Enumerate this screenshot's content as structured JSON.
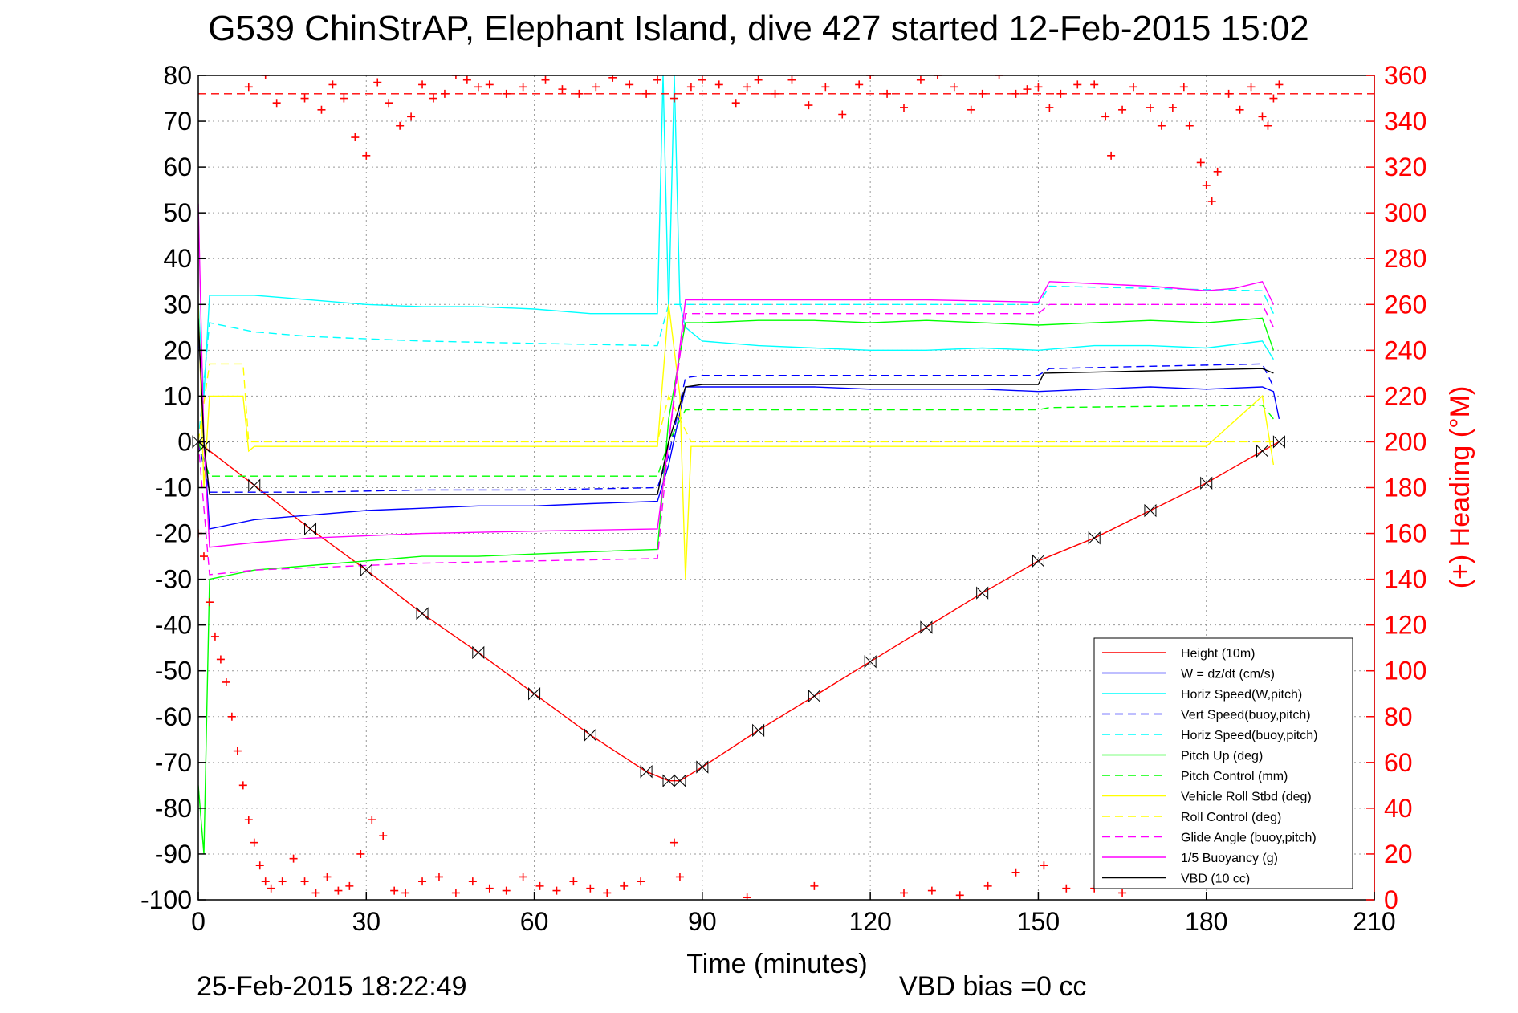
{
  "chart_data": {
    "type": "line",
    "title": "G539 ChinStrAP, Elephant Island, dive 427 started 12-Feb-2015 15:02",
    "xlabel": "Time (minutes)",
    "ylabel_right": "(+) Heading (°M)",
    "footer_left": "25-Feb-2015 18:22:49",
    "footer_right": "VBD bias =0 cc",
    "xlim": [
      0,
      210
    ],
    "ylim": [
      -100,
      80
    ],
    "ylim_right": [
      0,
      360
    ],
    "x_ticks": [
      0,
      30,
      60,
      90,
      120,
      150,
      180,
      210
    ],
    "y_ticks": [
      80,
      70,
      60,
      50,
      40,
      30,
      20,
      10,
      0,
      -10,
      -20,
      -30,
      -40,
      -50,
      -60,
      -70,
      -80,
      -90,
      -100
    ],
    "y_ticks_right": [
      360,
      340,
      320,
      300,
      280,
      260,
      240,
      220,
      200,
      180,
      160,
      140,
      120,
      100,
      80,
      60,
      40,
      20,
      0
    ],
    "grid": true,
    "legend_position": "lower-right",
    "series": [
      {
        "name": "Height (10m)",
        "color": "#ff0000",
        "style": "solid",
        "x": [
          0,
          1,
          10,
          20,
          30,
          40,
          50,
          60,
          70,
          80,
          84,
          86,
          90,
          100,
          110,
          120,
          130,
          140,
          150,
          160,
          170,
          180,
          190,
          193
        ],
        "y": [
          0,
          -1,
          -9.5,
          -19,
          -28,
          -37.5,
          -46,
          -55,
          -64,
          -72,
          -74,
          -74,
          -71,
          -63,
          -55.5,
          -48,
          -40.5,
          -33,
          -26,
          -21,
          -15,
          -9,
          -2,
          0
        ]
      },
      {
        "name": "W = dz/dt (cm/s)",
        "color": "#0000ff",
        "style": "solid",
        "x": [
          0,
          1,
          2,
          10,
          20,
          30,
          40,
          50,
          60,
          70,
          82,
          84,
          87,
          90,
          100,
          110,
          120,
          130,
          140,
          150,
          160,
          170,
          180,
          190,
          192,
          193
        ],
        "y": [
          25,
          0,
          -19,
          -17,
          -16,
          -15,
          -14.5,
          -14,
          -14,
          -13.5,
          -13,
          -5,
          12,
          12,
          12,
          12,
          11.5,
          11.5,
          11.5,
          11,
          11.5,
          12,
          11.5,
          12,
          11,
          5
        ]
      },
      {
        "name": "Horiz Speed(W,pitch)",
        "color": "#00ffff",
        "style": "solid",
        "x": [
          0,
          1,
          2,
          10,
          20,
          30,
          40,
          50,
          60,
          70,
          82,
          83,
          84,
          85,
          86,
          87,
          90,
          100,
          110,
          120,
          130,
          140,
          150,
          160,
          170,
          180,
          190,
          192
        ],
        "y": [
          30,
          10,
          32,
          32,
          31,
          30,
          29.5,
          29.5,
          29,
          28,
          28,
          80,
          28,
          80,
          30,
          25,
          22,
          21,
          20.5,
          20,
          20,
          20.5,
          20,
          21,
          21,
          20.5,
          22,
          18
        ]
      },
      {
        "name": "Vert Speed(buoy,pitch)",
        "color": "#0000ff",
        "style": "dashed",
        "x": [
          0,
          2,
          10,
          20,
          40,
          60,
          82,
          84,
          87,
          90,
          110,
          130,
          150,
          152,
          170,
          190,
          192
        ],
        "y": [
          0,
          -11,
          -11,
          -11,
          -10.5,
          -10.5,
          -10,
          -3,
          14,
          14.5,
          14.5,
          14.5,
          14.5,
          16,
          16.5,
          17,
          12
        ]
      },
      {
        "name": "Horiz Speed(buoy,pitch)",
        "color": "#00ffff",
        "style": "dashed",
        "x": [
          0,
          2,
          10,
          20,
          40,
          60,
          82,
          84,
          87,
          90,
          110,
          130,
          150,
          152,
          170,
          190,
          192
        ],
        "y": [
          0,
          26,
          24,
          23,
          22,
          21.5,
          21,
          30,
          30,
          30,
          30,
          30,
          30,
          34,
          33.5,
          33,
          28
        ]
      },
      {
        "name": "Pitch Up (deg)",
        "color": "#00ff00",
        "style": "solid",
        "x": [
          0,
          1,
          2,
          10,
          20,
          30,
          40,
          50,
          60,
          70,
          82,
          84,
          87,
          90,
          100,
          110,
          120,
          130,
          140,
          150,
          160,
          170,
          180,
          190,
          192
        ],
        "y": [
          -75,
          -90,
          -30,
          -28,
          -27,
          -26,
          -25,
          -25,
          -24.5,
          -24,
          -23.5,
          5,
          26,
          26,
          26.5,
          26.5,
          26,
          26.5,
          26,
          25.5,
          26,
          26.5,
          26,
          27,
          20
        ]
      },
      {
        "name": "Pitch Control (mm)",
        "color": "#00ff00",
        "style": "dashed",
        "x": [
          0,
          2,
          10,
          40,
          82,
          84,
          87,
          90,
          120,
          150,
          152,
          190,
          192
        ],
        "y": [
          0,
          -7.5,
          -7.5,
          -7.5,
          -7.5,
          0,
          7,
          7,
          7,
          7,
          7.5,
          8,
          5
        ]
      },
      {
        "name": "Vehicle Roll Stbd (deg)",
        "color": "#ffff00",
        "style": "solid",
        "x": [
          0,
          1,
          2,
          8,
          9,
          10,
          20,
          30,
          40,
          50,
          60,
          70,
          82,
          84,
          86,
          87,
          88,
          90,
          100,
          110,
          120,
          130,
          140,
          150,
          160,
          170,
          180,
          190,
          192
        ],
        "y": [
          30,
          -10,
          10,
          10,
          -2,
          -1,
          -1,
          -1,
          -1,
          -1,
          -1,
          -1,
          -1,
          30,
          10,
          -30,
          -1,
          -1,
          -1,
          -1,
          -1,
          -1,
          -1,
          -1,
          -1,
          -1,
          -1,
          10,
          -5
        ]
      },
      {
        "name": "Roll Control (deg)",
        "color": "#ffff00",
        "style": "dashed",
        "x": [
          0,
          2,
          8,
          9,
          40,
          82,
          84,
          88,
          90,
          120,
          150,
          152,
          190,
          192
        ],
        "y": [
          0,
          17,
          17,
          0,
          0,
          0,
          10,
          0,
          0,
          0,
          0,
          0,
          0,
          0
        ]
      },
      {
        "name": "Glide Angle (buoy,pitch)",
        "color": "#ff00ff",
        "style": "dashed",
        "x": [
          0,
          2,
          10,
          20,
          40,
          60,
          82,
          84,
          87,
          90,
          110,
          130,
          150,
          152,
          170,
          190,
          192
        ],
        "y": [
          0,
          -29,
          -28,
          -27.5,
          -26.5,
          -26,
          -25.5,
          0,
          28,
          28,
          28,
          28,
          28,
          30,
          30,
          30,
          25
        ]
      },
      {
        "name": "1/5 Buoyancy (g)",
        "color": "#ff00ff",
        "style": "solid",
        "x": [
          0,
          1,
          2,
          10,
          20,
          40,
          60,
          82,
          84,
          87,
          90,
          110,
          130,
          150,
          152,
          170,
          180,
          185,
          190,
          192
        ],
        "y": [
          52,
          0,
          -23,
          -22,
          -21,
          -20,
          -19.5,
          -19,
          0,
          31,
          31,
          31,
          31,
          30.5,
          35,
          34,
          33,
          33.5,
          35,
          30
        ]
      },
      {
        "name": "VBD (10 cc)",
        "color": "#000000",
        "style": "solid",
        "x": [
          0,
          1,
          2,
          10,
          40,
          82,
          84,
          87,
          90,
          120,
          150,
          151,
          170,
          190,
          192
        ],
        "y": [
          27,
          0,
          -11.5,
          -11.5,
          -11.5,
          -11.5,
          0,
          12,
          12.5,
          12.5,
          12.5,
          15,
          15.5,
          16,
          15
        ]
      }
    ],
    "heading": {
      "name": "Heading",
      "color": "#ff0000",
      "marker": "+",
      "mean": 352,
      "points": [
        [
          0,
          160
        ],
        [
          1,
          150
        ],
        [
          2,
          130
        ],
        [
          3,
          115
        ],
        [
          4,
          105
        ],
        [
          5,
          95
        ],
        [
          6,
          80
        ],
        [
          7,
          65
        ],
        [
          8,
          50
        ],
        [
          9,
          35
        ],
        [
          10,
          25
        ],
        [
          11,
          15
        ],
        [
          12,
          8
        ],
        [
          13,
          5
        ],
        [
          15,
          8
        ],
        [
          17,
          18
        ],
        [
          19,
          8
        ],
        [
          21,
          3
        ],
        [
          23,
          10
        ],
        [
          25,
          4
        ],
        [
          27,
          6
        ],
        [
          29,
          20
        ],
        [
          31,
          35
        ],
        [
          33,
          28
        ],
        [
          35,
          4
        ],
        [
          37,
          3
        ],
        [
          40,
          8
        ],
        [
          43,
          10
        ],
        [
          46,
          3
        ],
        [
          49,
          8
        ],
        [
          52,
          5
        ],
        [
          55,
          4
        ],
        [
          58,
          10
        ],
        [
          61,
          6
        ],
        [
          64,
          4
        ],
        [
          67,
          8
        ],
        [
          70,
          5
        ],
        [
          73,
          3
        ],
        [
          76,
          6
        ],
        [
          79,
          8
        ],
        [
          85,
          25
        ],
        [
          86,
          10
        ],
        [
          98,
          1
        ],
        [
          110,
          6
        ],
        [
          126,
          3
        ],
        [
          131,
          4
        ],
        [
          136,
          2
        ],
        [
          141,
          6
        ],
        [
          146,
          12
        ],
        [
          151,
          15
        ],
        [
          155,
          5
        ],
        [
          160,
          5
        ],
        [
          165,
          3
        ],
        [
          9,
          355
        ],
        [
          12,
          360
        ],
        [
          14,
          348
        ],
        [
          17,
          362
        ],
        [
          19,
          350
        ],
        [
          22,
          345
        ],
        [
          24,
          356
        ],
        [
          26,
          350
        ],
        [
          28,
          333
        ],
        [
          30,
          325
        ],
        [
          32,
          357
        ],
        [
          34,
          348
        ],
        [
          36,
          338
        ],
        [
          38,
          342
        ],
        [
          40,
          356
        ],
        [
          42,
          350
        ],
        [
          44,
          352
        ],
        [
          46,
          360
        ],
        [
          48,
          358
        ],
        [
          50,
          355
        ],
        [
          52,
          356
        ],
        [
          55,
          352
        ],
        [
          58,
          355
        ],
        [
          62,
          358
        ],
        [
          65,
          354
        ],
        [
          68,
          352
        ],
        [
          71,
          355
        ],
        [
          74,
          359
        ],
        [
          77,
          356
        ],
        [
          80,
          352
        ],
        [
          82,
          358
        ],
        [
          85,
          350
        ],
        [
          88,
          355
        ],
        [
          90,
          358
        ],
        [
          93,
          356
        ],
        [
          96,
          348
        ],
        [
          98,
          355
        ],
        [
          100,
          358
        ],
        [
          103,
          352
        ],
        [
          106,
          358
        ],
        [
          109,
          347
        ],
        [
          112,
          355
        ],
        [
          115,
          343
        ],
        [
          118,
          356
        ],
        [
          120,
          360
        ],
        [
          123,
          352
        ],
        [
          126,
          346
        ],
        [
          129,
          358
        ],
        [
          132,
          360
        ],
        [
          135,
          355
        ],
        [
          138,
          345
        ],
        [
          140,
          352
        ],
        [
          143,
          360
        ],
        [
          146,
          352
        ],
        [
          148,
          354
        ],
        [
          150,
          355
        ],
        [
          152,
          346
        ],
        [
          154,
          352
        ],
        [
          157,
          356
        ],
        [
          160,
          356
        ],
        [
          162,
          342
        ],
        [
          163,
          325
        ],
        [
          165,
          345
        ],
        [
          167,
          355
        ],
        [
          170,
          346
        ],
        [
          172,
          338
        ],
        [
          174,
          346
        ],
        [
          176,
          355
        ],
        [
          177,
          338
        ],
        [
          179,
          322
        ],
        [
          180,
          312
        ],
        [
          181,
          305
        ],
        [
          182,
          318
        ],
        [
          184,
          352
        ],
        [
          186,
          345
        ],
        [
          188,
          355
        ],
        [
          190,
          342
        ],
        [
          191,
          338
        ],
        [
          192,
          350
        ],
        [
          193,
          356
        ]
      ]
    }
  }
}
